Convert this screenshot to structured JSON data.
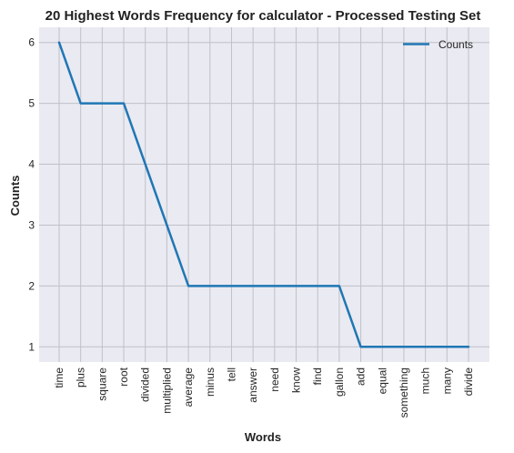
{
  "chart_data": {
    "type": "line",
    "title": "20 Highest Words Frequency for calculator - Processed Testing Set",
    "xlabel": "Words",
    "ylabel": "Counts",
    "categories": [
      "time",
      "plus",
      "square",
      "root",
      "divided",
      "multiplied",
      "average",
      "minus",
      "tell",
      "answer",
      "need",
      "know",
      "find",
      "gallon",
      "add",
      "equal",
      "something",
      "much",
      "many",
      "divide"
    ],
    "series": [
      {
        "name": "Counts",
        "values": [
          6,
          5,
          5,
          5,
          4,
          3,
          2,
          2,
          2,
          2,
          2,
          2,
          2,
          2,
          1,
          1,
          1,
          1,
          1,
          1
        ],
        "color": "#1f77b4"
      }
    ],
    "yticks": [
      1,
      2,
      3,
      4,
      5,
      6
    ],
    "ylim": [
      0.75,
      6.25
    ],
    "grid": true,
    "legend_position": "top-right",
    "background_color": "#eaeaf2",
    "grid_color": "#c0c0c8"
  }
}
